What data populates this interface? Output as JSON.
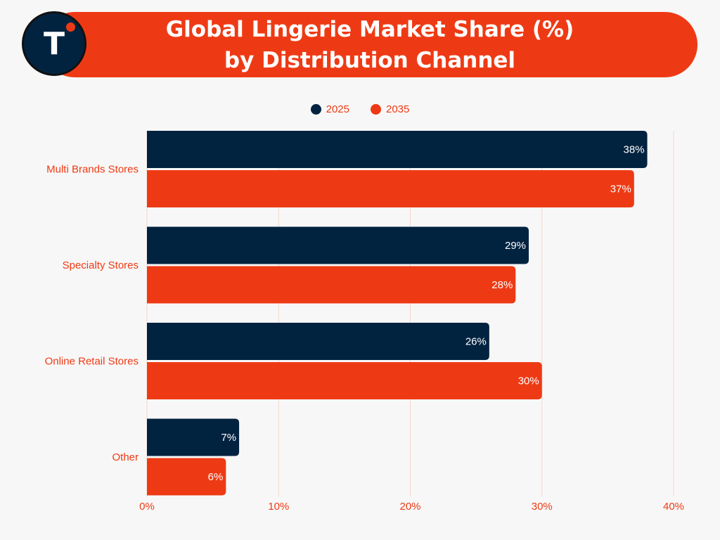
{
  "logo": {
    "letter": "T",
    "icon": "t-logo-icon"
  },
  "colors": {
    "brand_dark": "#022340",
    "brand_accent": "#ee3a14",
    "background": "#f8f7f7",
    "gridline": "#f3d6cf"
  },
  "chart_data": {
    "type": "bar",
    "orientation": "horizontal",
    "title_line1": "Global Lingerie Market Share (%)",
    "title_line2": "by Distribution Channel",
    "categories": [
      "Multi Brands Stores",
      "Specialty Stores",
      "Online Retail Stores",
      "Other"
    ],
    "series": [
      {
        "name": "2025",
        "color": "#022340",
        "values": [
          38,
          29,
          26,
          7
        ]
      },
      {
        "name": "2035",
        "color": "#ee3a14",
        "values": [
          37,
          28,
          30,
          6
        ]
      }
    ],
    "value_suffix": "%",
    "xlim": [
      0,
      40
    ],
    "xticks": [
      0,
      10,
      20,
      30,
      40
    ],
    "xtick_labels": [
      "0%",
      "10%",
      "20%",
      "30%",
      "40%"
    ],
    "grid": true,
    "legend_position": "top-center"
  }
}
